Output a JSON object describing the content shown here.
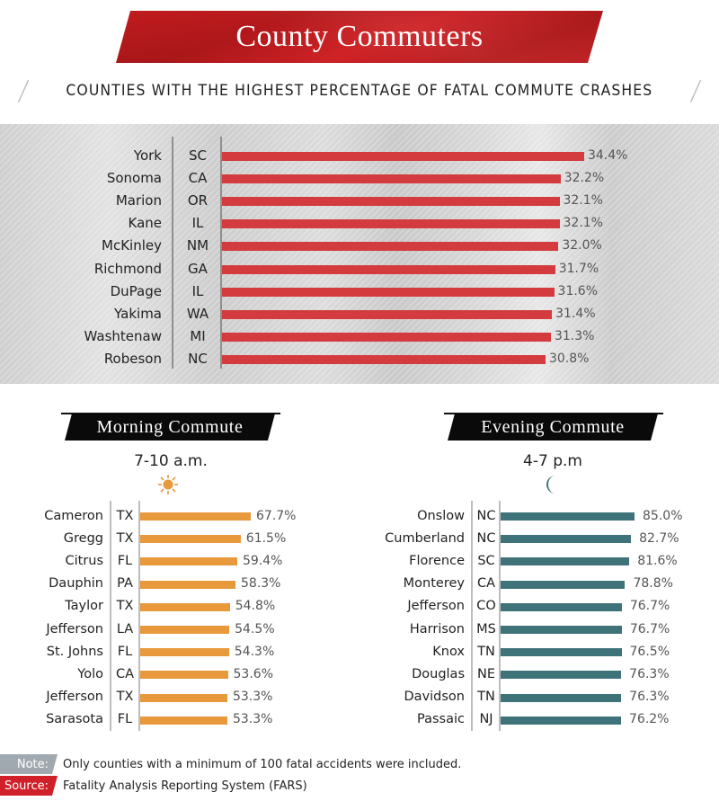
{
  "header": {
    "title": "County Commuters",
    "subtitle": "COUNTIES WITH THE HIGHEST PERCENTAGE OF FATAL COMMUTE CRASHES",
    "title_color": "#c61d1f"
  },
  "overall": {
    "bar_color": "#d33b3e",
    "rows": [
      {
        "county": "York",
        "state": "SC",
        "value": 34.4,
        "label": "34.4%"
      },
      {
        "county": "Sonoma",
        "state": "CA",
        "value": 32.2,
        "label": "32.2%"
      },
      {
        "county": "Marion",
        "state": "OR",
        "value": 32.1,
        "label": "32.1%"
      },
      {
        "county": "Kane",
        "state": "IL",
        "value": 32.1,
        "label": "32.1%"
      },
      {
        "county": "McKinley",
        "state": "NM",
        "value": 32.0,
        "label": "32.0%"
      },
      {
        "county": "Richmond",
        "state": "GA",
        "value": 31.7,
        "label": "31.7%"
      },
      {
        "county": "DuPage",
        "state": "IL",
        "value": 31.6,
        "label": "31.6%"
      },
      {
        "county": "Yakima",
        "state": "WA",
        "value": 31.4,
        "label": "31.4%"
      },
      {
        "county": "Washtenaw",
        "state": "MI",
        "value": 31.3,
        "label": "31.3%"
      },
      {
        "county": "Robeson",
        "state": "NC",
        "value": 30.8,
        "label": "30.8%"
      }
    ]
  },
  "morning": {
    "title": "Morning Commute",
    "time": "7-10 a.m.",
    "icon": "sun-icon",
    "icon_glyph": "☀",
    "bar_color": "#e8993c",
    "rows": [
      {
        "county": "Cameron",
        "state": "TX",
        "value": 67.7,
        "label": "67.7%"
      },
      {
        "county": "Gregg",
        "state": "TX",
        "value": 61.5,
        "label": "61.5%"
      },
      {
        "county": "Citrus",
        "state": "FL",
        "value": 59.4,
        "label": "59.4%"
      },
      {
        "county": "Dauphin",
        "state": "PA",
        "value": 58.3,
        "label": "58.3%"
      },
      {
        "county": "Taylor",
        "state": "TX",
        "value": 54.8,
        "label": "54.8%"
      },
      {
        "county": "Jefferson",
        "state": "LA",
        "value": 54.5,
        "label": "54.5%"
      },
      {
        "county": "St. Johns",
        "state": "FL",
        "value": 54.3,
        "label": "54.3%"
      },
      {
        "county": "Yolo",
        "state": "CA",
        "value": 53.6,
        "label": "53.6%"
      },
      {
        "county": "Jefferson",
        "state": "TX",
        "value": 53.3,
        "label": "53.3%"
      },
      {
        "county": "Sarasota",
        "state": "FL",
        "value": 53.3,
        "label": "53.3%"
      }
    ]
  },
  "evening": {
    "title": "Evening Commute",
    "time": "4-7 p.m",
    "icon": "moon-icon",
    "icon_glyph": "☾",
    "bar_color": "#3f737a",
    "rows": [
      {
        "county": "Onslow",
        "state": "NC",
        "value": 85.0,
        "label": "85.0%"
      },
      {
        "county": "Cumberland",
        "state": "NC",
        "value": 82.7,
        "label": "82.7%"
      },
      {
        "county": "Florence",
        "state": "SC",
        "value": 81.6,
        "label": "81.6%"
      },
      {
        "county": "Monterey",
        "state": "CA",
        "value": 78.8,
        "label": "78.8%"
      },
      {
        "county": "Jefferson",
        "state": "CO",
        "value": 76.7,
        "label": "76.7%"
      },
      {
        "county": "Harrison",
        "state": "MS",
        "value": 76.7,
        "label": "76.7%"
      },
      {
        "county": "Knox",
        "state": "TN",
        "value": 76.5,
        "label": "76.5%"
      },
      {
        "county": "Douglas",
        "state": "NE",
        "value": 76.3,
        "label": "76.3%"
      },
      {
        "county": "Davidson",
        "state": "TN",
        "value": 76.3,
        "label": "76.3%"
      },
      {
        "county": "Passaic",
        "state": "NJ",
        "value": 76.2,
        "label": "76.2%"
      }
    ]
  },
  "footer": {
    "note_label": "Note:",
    "note_text": "Only counties with a minimum of 100 fatal accidents were included.",
    "source_label": "Source:",
    "source_text": "Fatality Analysis Reporting System (FARS)",
    "note_color": "#a0a9b0",
    "source_color": "#d0202a"
  },
  "chart_data": [
    {
      "type": "bar",
      "orientation": "horizontal",
      "title": "Counties with the highest percentage of fatal commute crashes",
      "categories": [
        "York, SC",
        "Sonoma, CA",
        "Marion, OR",
        "Kane, IL",
        "McKinley, NM",
        "Richmond, GA",
        "DuPage, IL",
        "Yakima, WA",
        "Washtenaw, MI",
        "Robeson, NC"
      ],
      "values": [
        34.4,
        32.2,
        32.1,
        32.1,
        32.0,
        31.7,
        31.6,
        31.4,
        31.3,
        30.8
      ],
      "unit": "%",
      "color": "#d33b3e",
      "grid": false
    },
    {
      "type": "bar",
      "orientation": "horizontal",
      "title": "Morning Commute (7-10 a.m.)",
      "categories": [
        "Cameron, TX",
        "Gregg, TX",
        "Citrus, FL",
        "Dauphin, PA",
        "Taylor, TX",
        "Jefferson, LA",
        "St. Johns, FL",
        "Yolo, CA",
        "Jefferson, TX",
        "Sarasota, FL"
      ],
      "values": [
        67.7,
        61.5,
        59.4,
        58.3,
        54.8,
        54.5,
        54.3,
        53.6,
        53.3,
        53.3
      ],
      "unit": "%",
      "color": "#e8993c",
      "grid": false
    },
    {
      "type": "bar",
      "orientation": "horizontal",
      "title": "Evening Commute (4-7 p.m)",
      "categories": [
        "Onslow, NC",
        "Cumberland, NC",
        "Florence, SC",
        "Monterey, CA",
        "Jefferson, CO",
        "Harrison, MS",
        "Knox, TN",
        "Douglas, NE",
        "Davidson, TN",
        "Passaic, NJ"
      ],
      "values": [
        85.0,
        82.7,
        81.6,
        78.8,
        76.7,
        76.7,
        76.5,
        76.3,
        76.3,
        76.2
      ],
      "unit": "%",
      "color": "#3f737a",
      "grid": false
    }
  ]
}
